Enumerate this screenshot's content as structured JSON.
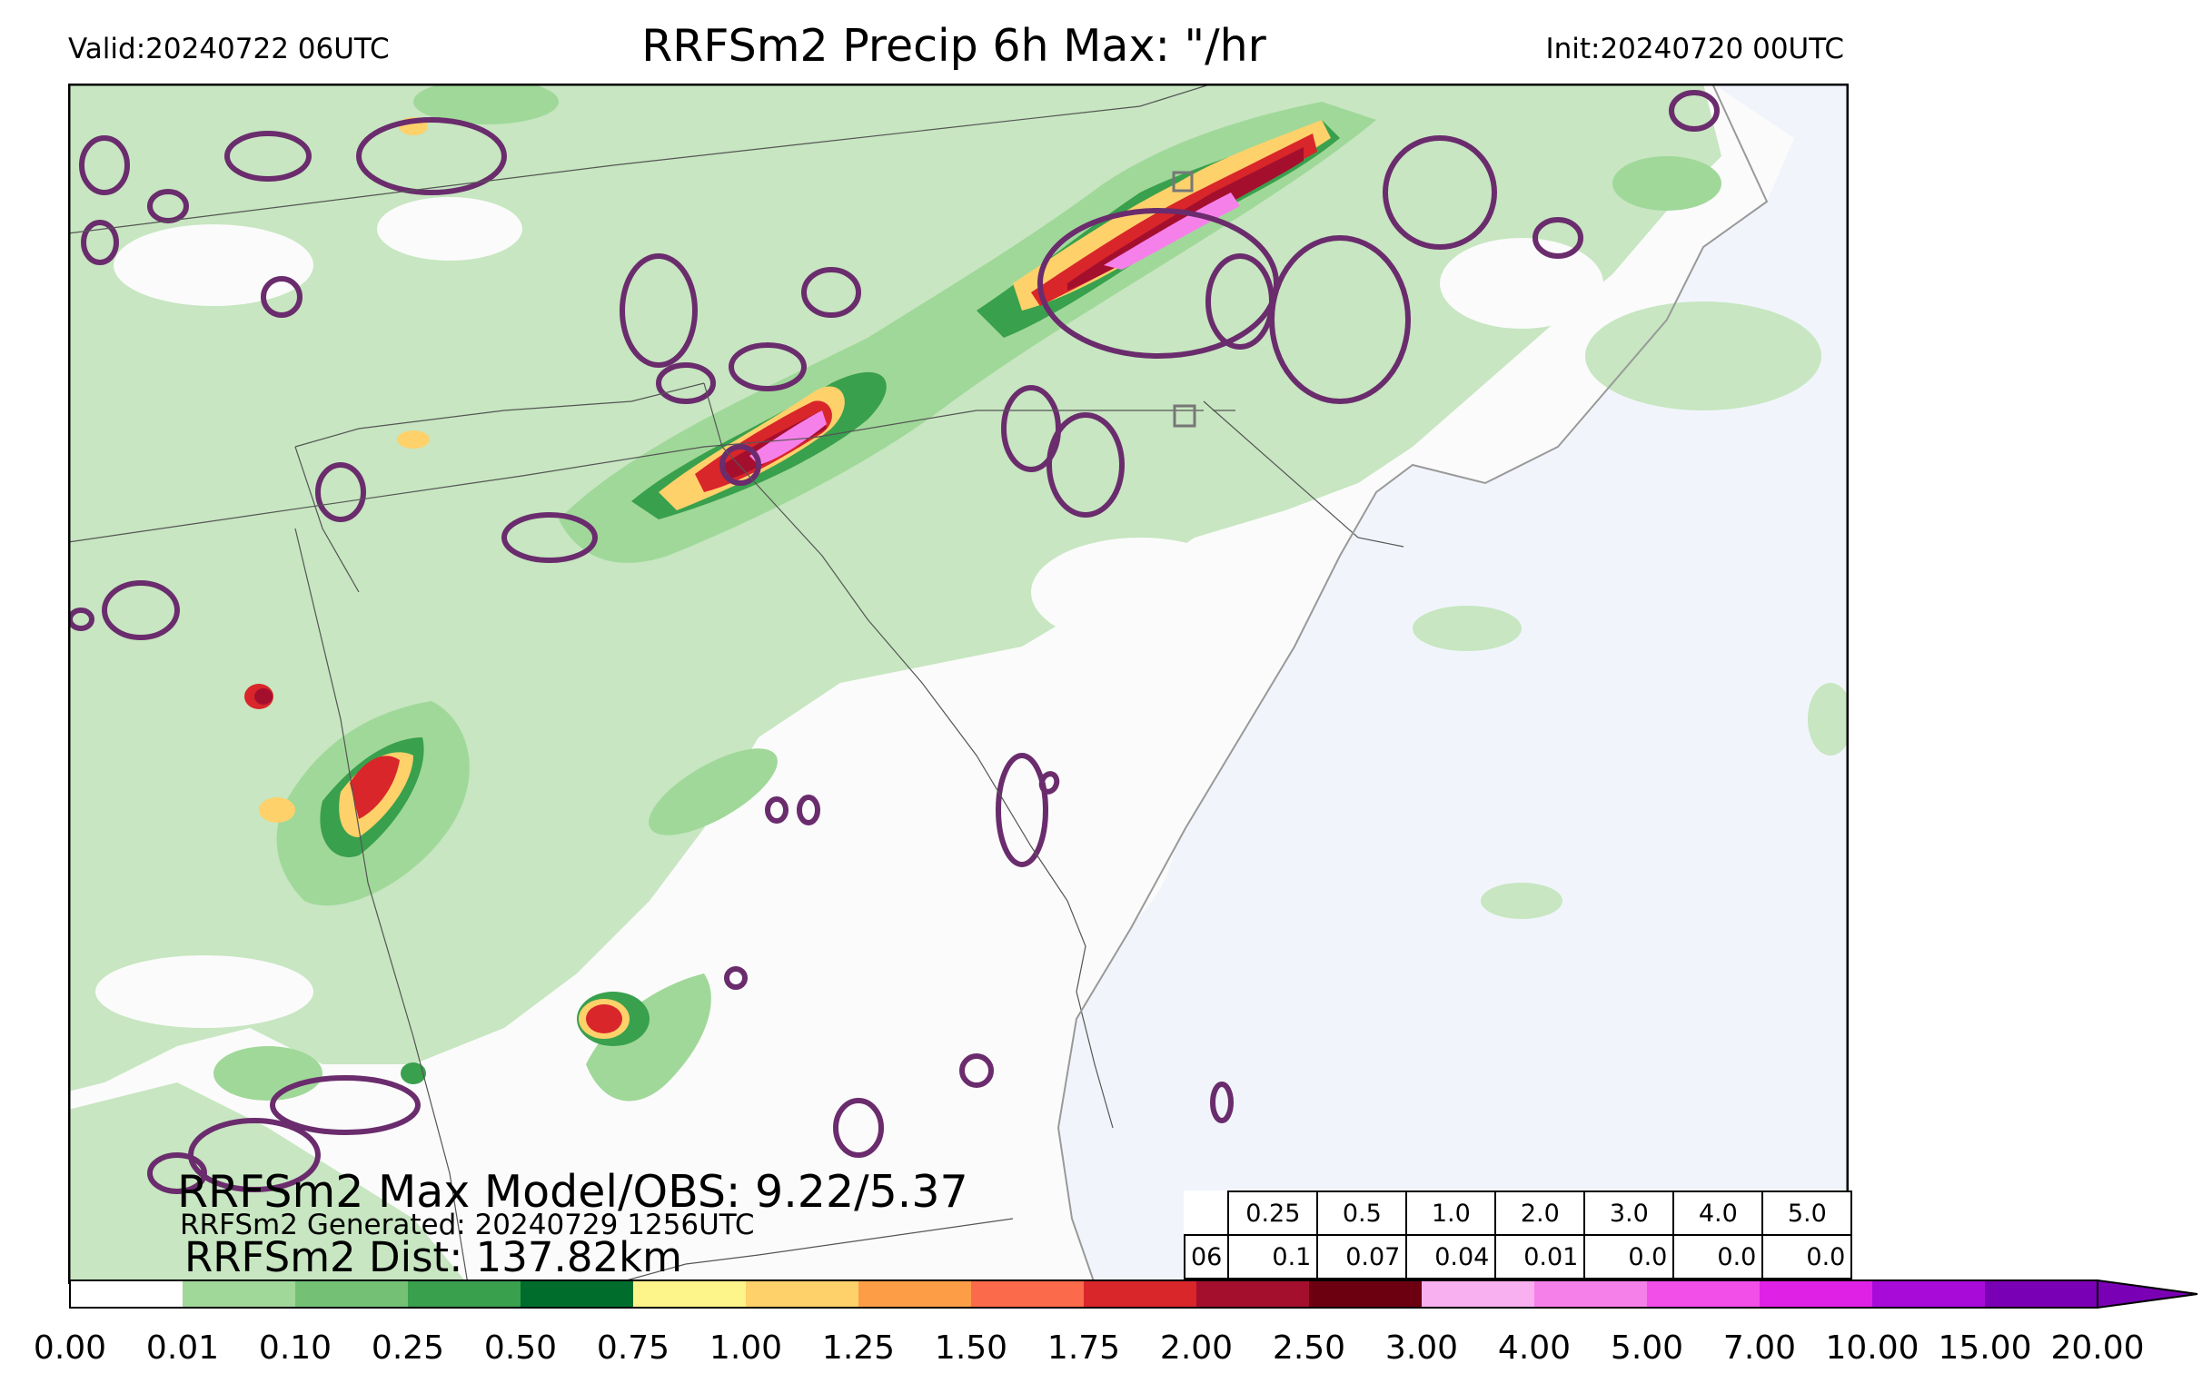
{
  "header": {
    "valid": "Valid:20240722 06UTC",
    "title": "RRFSm2 Precip 6h Max: \"/hr",
    "init": "Init:20240720 00UTC"
  },
  "annotations": {
    "max_model_obs": "RRFSm2 Max Model/OBS: 9.22/5.37",
    "generated": "RRFSm2 Generated: 20240729 1256UTC",
    "dist": "RRFSm2 Dist: 137.82km"
  },
  "stats_table": {
    "hour": "06",
    "thresholds": [
      "0.25",
      "0.5",
      "1.0",
      "2.0",
      "3.0",
      "4.0",
      "5.0"
    ],
    "values": [
      "0.1",
      "0.07",
      "0.04",
      "0.01",
      "0.0",
      "0.0",
      "0.0"
    ]
  },
  "colorbar": {
    "ticks": [
      "0.00",
      "0.01",
      "0.10",
      "0.25",
      "0.50",
      "0.75",
      "1.00",
      "1.25",
      "1.50",
      "1.75",
      "2.00",
      "2.50",
      "3.00",
      "4.00",
      "5.00",
      "7.00",
      "10.00",
      "15.00",
      "20.00"
    ],
    "colors": [
      "#ffffff",
      "#c7e6c1",
      "#a0d899",
      "#74c176",
      "#39a04d",
      "#006d2c",
      "#fdf48a",
      "#fed16b",
      "#fd9e47",
      "#fb6a4a",
      "#d8262a",
      "#a50f2e",
      "#6c0011",
      "#f8b0f0",
      "#f680ea",
      "#f24ee8",
      "#df21e6",
      "#a80bd8",
      "#7a00b5"
    ],
    "extend": "max"
  },
  "map": {
    "ocean_color": "#f1f5fb",
    "land_color": "#fbfbfb",
    "obs_contour_color": "#6a2c6d"
  }
}
